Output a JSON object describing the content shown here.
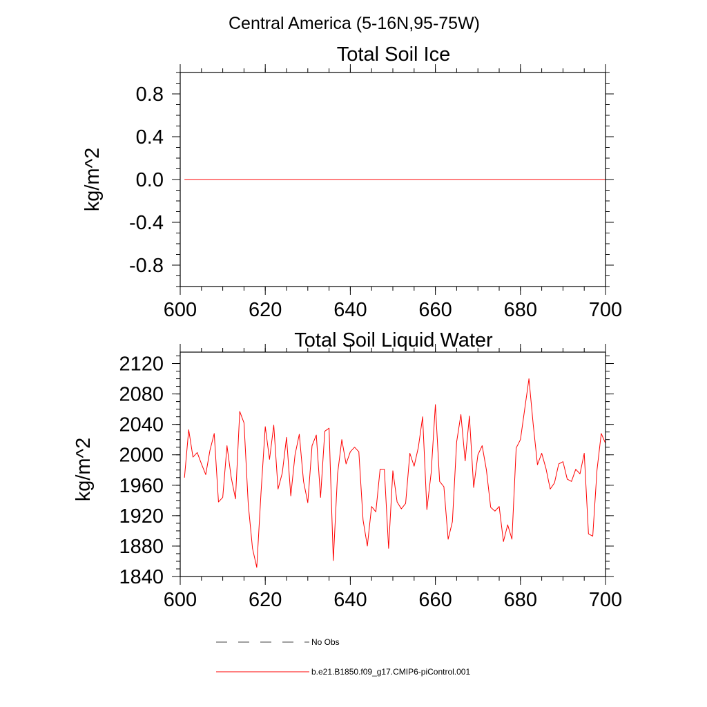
{
  "figure": {
    "suptitle": "Central America (5-16N,95-75W)"
  },
  "chart_data": [
    {
      "type": "line",
      "title": "Total Soil Ice",
      "xlabel": "",
      "ylabel": "kg/m^2",
      "xlim": [
        600,
        700
      ],
      "ylim": [
        -1.0,
        1.0
      ],
      "xticks": [
        600,
        620,
        640,
        660,
        680,
        700
      ],
      "xtick_labels": [
        "600",
        "620",
        "640",
        "660",
        "680",
        "700"
      ],
      "yticks": [
        0.8,
        0.4,
        0.0,
        -0.4,
        -0.8
      ],
      "ytick_labels": [
        "0.8",
        "0.4",
        "0.0",
        "-0.4",
        "-0.8"
      ],
      "grid": false,
      "series": [
        {
          "name": "b.e21.B1850.f09_g17.CMIP6-piControl.001",
          "color": "#ff0000",
          "x_start": 601,
          "x_end": 700,
          "values": [
            0.0,
            0.0
          ]
        }
      ]
    },
    {
      "type": "line",
      "title": "Total Soil Liquid Water",
      "xlabel": "",
      "ylabel": "kg/m^2",
      "xlim": [
        600,
        700
      ],
      "ylim": [
        1840,
        2135
      ],
      "xticks": [
        600,
        620,
        640,
        660,
        680,
        700
      ],
      "xtick_labels": [
        "600",
        "620",
        "640",
        "660",
        "680",
        "700"
      ],
      "yticks": [
        1840,
        1880,
        1920,
        1960,
        2000,
        2040,
        2080,
        2120
      ],
      "ytick_labels": [
        "1840",
        "1880",
        "1920",
        "1960",
        "2000",
        "2040",
        "2080",
        "2120"
      ],
      "grid": false,
      "series": [
        {
          "name": "b.e21.B1850.f09_g17.CMIP6-piControl.001",
          "color": "#ff0000",
          "x_start": 601,
          "values": [
            1970,
            2033,
            1997,
            2003,
            1988,
            1974,
            2006,
            2028,
            1938,
            1944,
            2012,
            1970,
            1942,
            2057,
            2042,
            1935,
            1877,
            1852,
            1950,
            2037,
            1994,
            2039,
            1955,
            1976,
            2023,
            1946,
            2000,
            2027,
            1965,
            1937,
            2012,
            2026,
            1944,
            2031,
            2035,
            1861,
            1975,
            2020,
            1988,
            2004,
            2010,
            2004,
            1914,
            1880,
            1932,
            1925,
            1981,
            1981,
            1877,
            1979,
            1938,
            1929,
            1936,
            2002,
            1985,
            2010,
            2050,
            1928,
            1976,
            2066,
            1965,
            1958,
            1889,
            1912,
            2017,
            2053,
            1992,
            2051,
            1957,
            2000,
            2012,
            1980,
            1931,
            1926,
            1932,
            1886,
            1908,
            1889,
            2009,
            2020,
            2060,
            2100,
            2040,
            1987,
            2002,
            1982,
            1955,
            1963,
            1988,
            1991,
            1968,
            1965,
            1981,
            1975,
            2002,
            1896,
            1893,
            1980,
            2028,
            2015
          ]
        }
      ]
    }
  ],
  "legend": {
    "placement": "bottom",
    "entries": [
      {
        "label": "No Obs",
        "color": "#000000",
        "style": "dashed"
      },
      {
        "label": "b.e21.B1850.f09_g17.CMIP6-piControl.001",
        "color": "#ff0000",
        "style": "solid"
      }
    ]
  }
}
